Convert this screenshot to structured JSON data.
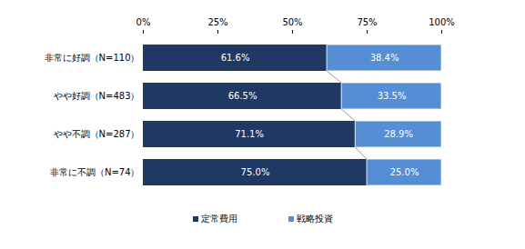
{
  "chart_data": {
    "type": "bar",
    "orientation": "horizontal",
    "stacked": true,
    "data_labels": true,
    "legend": "bottom",
    "categories": [
      "非常に好調（N=110）",
      "やや好調（N=483）",
      "やや不調（N=287）",
      "非常に不調（N=74）"
    ],
    "series": [
      {
        "name": "定常費用",
        "color": "#1f3864",
        "values": [
          61.6,
          66.5,
          71.1,
          75.0
        ],
        "value_labels": [
          "61.6%",
          "66.5%",
          "71.1%",
          "75.0%"
        ]
      },
      {
        "name": "戦略投資",
        "color": "#558ed5",
        "values": [
          38.4,
          33.5,
          28.9,
          25.0
        ],
        "value_labels": [
          "38.4%",
          "33.5%",
          "28.9%",
          "25.0%"
        ]
      }
    ],
    "xlim": [
      0,
      100
    ],
    "xticks": [
      {
        "value": 0,
        "label": "0%"
      },
      {
        "value": 25,
        "label": "25%"
      },
      {
        "value": 50,
        "label": "50%"
      },
      {
        "value": 75,
        "label": "75%"
      },
      {
        "value": 100,
        "label": "100%"
      }
    ]
  }
}
